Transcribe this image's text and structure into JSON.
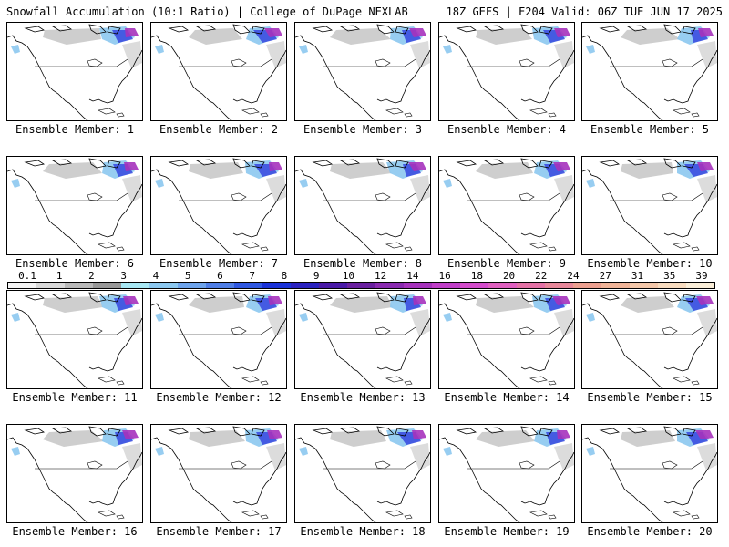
{
  "header": {
    "left": "Snowfall Accumulation (10:1 Ratio) | College of DuPage NEXLAB",
    "right": "18Z GEFS | F204 Valid: 06Z TUE JUN 17 2025"
  },
  "colorbar": {
    "ticks": [
      "0.1",
      "1",
      "2",
      "3",
      "4",
      "5",
      "6",
      "7",
      "8",
      "9",
      "10",
      "12",
      "14",
      "16",
      "18",
      "20",
      "22",
      "24",
      "27",
      "31",
      "35",
      "39"
    ],
    "colors": [
      "#f4f4f4",
      "#d8d8d8",
      "#b8b8b8",
      "#989898",
      "#a8e8f4",
      "#8cc8f0",
      "#6ea4ec",
      "#4f7ee6",
      "#2f58e2",
      "#1a32d8",
      "#2a22c0",
      "#4a1aa8",
      "#6a20a0",
      "#8a2ab0",
      "#a632bc",
      "#c03ec8",
      "#d44ccc",
      "#e060c0",
      "#e472a6",
      "#e8889a",
      "#eca090",
      "#f0b498",
      "#f4c8aa",
      "#f8dcbf",
      "#faeed8"
    ]
  },
  "panels": [
    {
      "label": "Ensemble Member: 1"
    },
    {
      "label": "Ensemble Member: 2"
    },
    {
      "label": "Ensemble Member: 3"
    },
    {
      "label": "Ensemble Member: 4"
    },
    {
      "label": "Ensemble Member: 5"
    },
    {
      "label": "Ensemble Member: 6"
    },
    {
      "label": "Ensemble Member: 7"
    },
    {
      "label": "Ensemble Member: 8"
    },
    {
      "label": "Ensemble Member: 9"
    },
    {
      "label": "Ensemble Member: 10"
    },
    {
      "label": "Ensemble Member: 11"
    },
    {
      "label": "Ensemble Member: 12"
    },
    {
      "label": "Ensemble Member: 13"
    },
    {
      "label": "Ensemble Member: 14"
    },
    {
      "label": "Ensemble Member: 15"
    },
    {
      "label": "Ensemble Member: 16"
    },
    {
      "label": "Ensemble Member: 17"
    },
    {
      "label": "Ensemble Member: 18"
    },
    {
      "label": "Ensemble Member: 19"
    },
    {
      "label": "Ensemble Member: 20"
    }
  ]
}
